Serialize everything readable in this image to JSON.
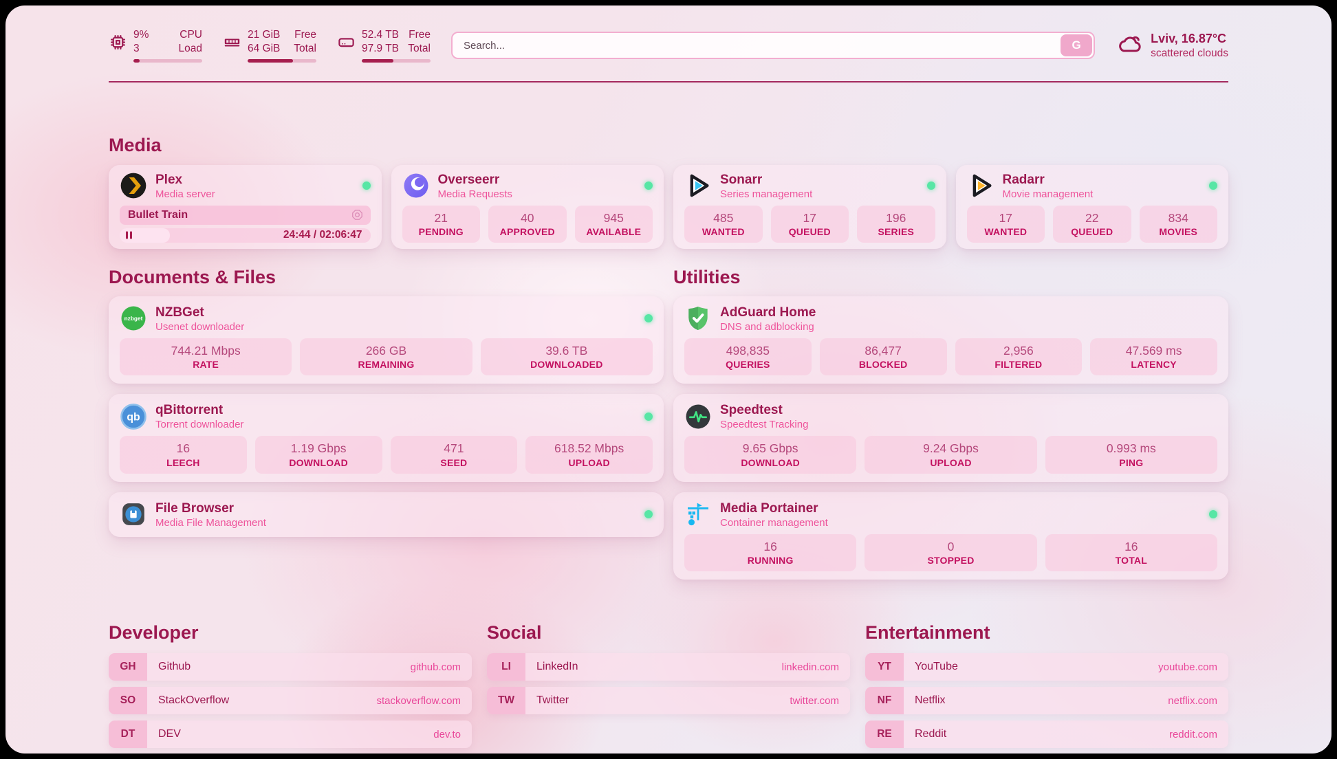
{
  "topbar": {
    "cpu": {
      "value1": "9%",
      "value2": "3",
      "label1": "CPU",
      "label2": "Load",
      "progress_pct": 9
    },
    "ram": {
      "value1": "21 GiB",
      "value2": "64 GiB",
      "label1": "Free",
      "label2": "Total",
      "progress_pct": 66
    },
    "disk": {
      "value1": "52.4 TB",
      "value2": "97.9 TB",
      "label1": "Free",
      "label2": "Total",
      "progress_pct": 46
    },
    "search": {
      "placeholder": "Search...",
      "button_label": "G"
    },
    "weather": {
      "location": "Lviv, 16.87°C",
      "condition": "scattered clouds"
    }
  },
  "sections": {
    "media": "Media",
    "documents": "Documents & Files",
    "utilities": "Utilities",
    "developer": "Developer",
    "social": "Social",
    "entertainment": "Entertainment"
  },
  "apps": {
    "plex": {
      "name": "Plex",
      "desc": "Media server",
      "now_playing": "Bullet Train",
      "time": "24:44 / 02:06:47",
      "progress_pct": 20
    },
    "overseerr": {
      "name": "Overseerr",
      "desc": "Media Requests",
      "stats": [
        {
          "value": "21",
          "label": "PENDING"
        },
        {
          "value": "40",
          "label": "APPROVED"
        },
        {
          "value": "945",
          "label": "AVAILABLE"
        }
      ]
    },
    "sonarr": {
      "name": "Sonarr",
      "desc": "Series management",
      "stats": [
        {
          "value": "485",
          "label": "WANTED"
        },
        {
          "value": "17",
          "label": "QUEUED"
        },
        {
          "value": "196",
          "label": "SERIES"
        }
      ]
    },
    "radarr": {
      "name": "Radarr",
      "desc": "Movie management",
      "stats": [
        {
          "value": "17",
          "label": "WANTED"
        },
        {
          "value": "22",
          "label": "QUEUED"
        },
        {
          "value": "834",
          "label": "MOVIES"
        }
      ]
    },
    "nzbget": {
      "name": "NZBGet",
      "desc": "Usenet downloader",
      "stats": [
        {
          "value": "744.21 Mbps",
          "label": "RATE"
        },
        {
          "value": "266 GB",
          "label": "REMAINING"
        },
        {
          "value": "39.6 TB",
          "label": "DOWNLOADED"
        }
      ]
    },
    "qbittorrent": {
      "name": "qBittorrent",
      "desc": "Torrent downloader",
      "stats": [
        {
          "value": "16",
          "label": "LEECH"
        },
        {
          "value": "1.19 Gbps",
          "label": "DOWNLOAD"
        },
        {
          "value": "471",
          "label": "SEED"
        },
        {
          "value": "618.52 Mbps",
          "label": "UPLOAD"
        }
      ]
    },
    "filebrowser": {
      "name": "File Browser",
      "desc": "Media File Management"
    },
    "adguard": {
      "name": "AdGuard Home",
      "desc": "DNS and adblocking",
      "stats": [
        {
          "value": "498,835",
          "label": "QUERIES"
        },
        {
          "value": "86,477",
          "label": "BLOCKED"
        },
        {
          "value": "2,956",
          "label": "FILTERED"
        },
        {
          "value": "47.569 ms",
          "label": "LATENCY"
        }
      ]
    },
    "speedtest": {
      "name": "Speedtest",
      "desc": "Speedtest Tracking",
      "stats": [
        {
          "value": "9.65 Gbps",
          "label": "DOWNLOAD"
        },
        {
          "value": "9.24 Gbps",
          "label": "UPLOAD"
        },
        {
          "value": "0.993 ms",
          "label": "PING"
        }
      ]
    },
    "portainer": {
      "name": "Media Portainer",
      "desc": "Container management",
      "stats": [
        {
          "value": "16",
          "label": "RUNNING"
        },
        {
          "value": "0",
          "label": "STOPPED"
        },
        {
          "value": "16",
          "label": "TOTAL"
        }
      ]
    }
  },
  "bookmarks": {
    "developer": [
      {
        "abbr": "GH",
        "name": "Github",
        "url": "github.com"
      },
      {
        "abbr": "SO",
        "name": "StackOverflow",
        "url": "stackoverflow.com"
      },
      {
        "abbr": "DT",
        "name": "DEV",
        "url": "dev.to"
      }
    ],
    "social": [
      {
        "abbr": "LI",
        "name": "LinkedIn",
        "url": "linkedin.com"
      },
      {
        "abbr": "TW",
        "name": "Twitter",
        "url": "twitter.com"
      }
    ],
    "entertainment": [
      {
        "abbr": "YT",
        "name": "YouTube",
        "url": "youtube.com"
      },
      {
        "abbr": "NF",
        "name": "Netflix",
        "url": "netflix.com"
      },
      {
        "abbr": "RE",
        "name": "Reddit",
        "url": "reddit.com"
      }
    ]
  },
  "colors": {
    "accent": "#9c1850",
    "pink": "#ee549b",
    "link": "#e9489a",
    "status_green": "#57e6a5",
    "plex_gold": "#e5a00d"
  }
}
